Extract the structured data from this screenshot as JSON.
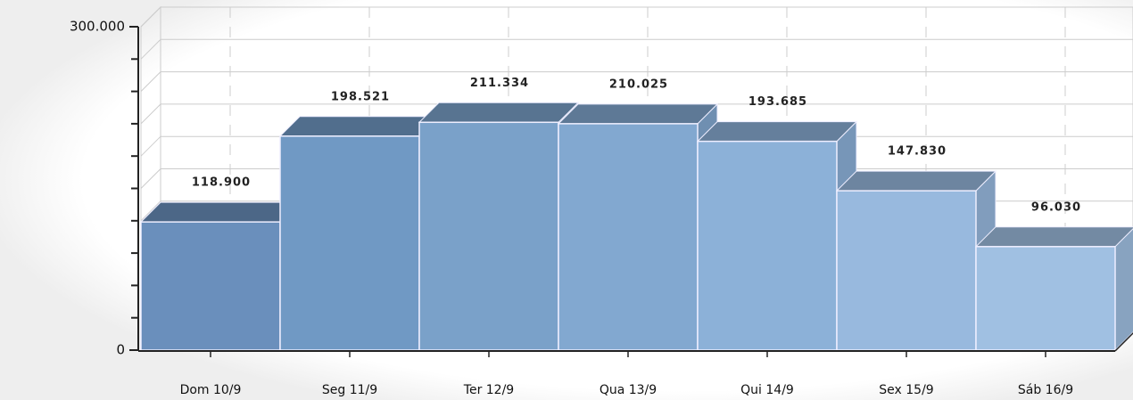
{
  "chart_data": {
    "type": "bar3d",
    "categories": [
      "Dom 10/9",
      "Seg 11/9",
      "Ter 12/9",
      "Qua 13/9",
      "Qui 14/9",
      "Sex 15/9",
      "Sáb 16/9"
    ],
    "values": [
      118900,
      198521,
      211334,
      210025,
      193685,
      147830,
      96030
    ],
    "value_labels": [
      "118.900",
      "198.521",
      "211.334",
      "210.025",
      "193.685",
      "147.830",
      "96.030"
    ],
    "colors": [
      "#6a8fbc",
      "#7099c4",
      "#7aa1c9",
      "#82a8d0",
      "#8cb1d8",
      "#98b9de",
      "#a0c0e2"
    ],
    "ylim": [
      0,
      300000
    ],
    "yticks": [
      0,
      {
        "value": 300000,
        "label": "300.000"
      }
    ],
    "yminorticks": [
      30000,
      60000,
      90000,
      120000,
      150000,
      180000,
      210000,
      240000,
      270000
    ],
    "grid": true
  }
}
